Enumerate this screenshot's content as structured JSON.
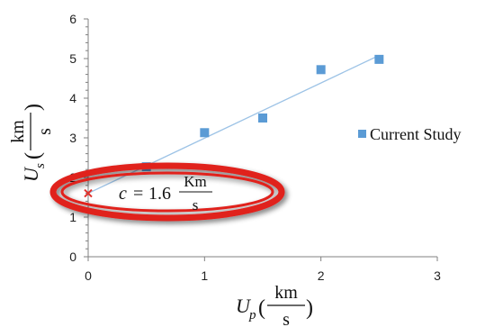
{
  "chart_data": {
    "type": "scatter",
    "title": "",
    "x_ticks": [
      "0",
      "1",
      "2",
      "3"
    ],
    "y_ticks": [
      "0",
      "1",
      "2",
      "3",
      "4",
      "5",
      "6"
    ],
    "xlim": [
      0,
      3
    ],
    "ylim": [
      0,
      6
    ],
    "xlabel": {
      "symbol": "U",
      "subscript": "p",
      "open": "(",
      "numerator": "km",
      "denominator": "s",
      "close": ")"
    },
    "ylabel": {
      "symbol": "U",
      "subscript": "s",
      "open": "(",
      "numerator": "km",
      "denominator": "s",
      "close": ")"
    },
    "grid": false,
    "legend_position": "right",
    "series": [
      {
        "name": "Current Study",
        "color": "#5b9bd5",
        "x": [
          0.5,
          1.0,
          1.5,
          2.0,
          2.5
        ],
        "y": [
          2.27,
          3.13,
          3.5,
          4.72,
          4.98
        ]
      }
    ],
    "trendline": {
      "color": "#9dc3e6",
      "x": [
        0,
        2.5
      ],
      "y": [
        1.6,
        5.08
      ]
    },
    "intercept_point": {
      "x": 0,
      "y": 1.6,
      "marker": "x-icon",
      "color": "#e0322d"
    },
    "annotation": {
      "lhs": "c",
      "equals": "=",
      "value": "1.6",
      "numerator": "Km",
      "denominator": "s",
      "highlight_color": "#e0201f"
    }
  }
}
